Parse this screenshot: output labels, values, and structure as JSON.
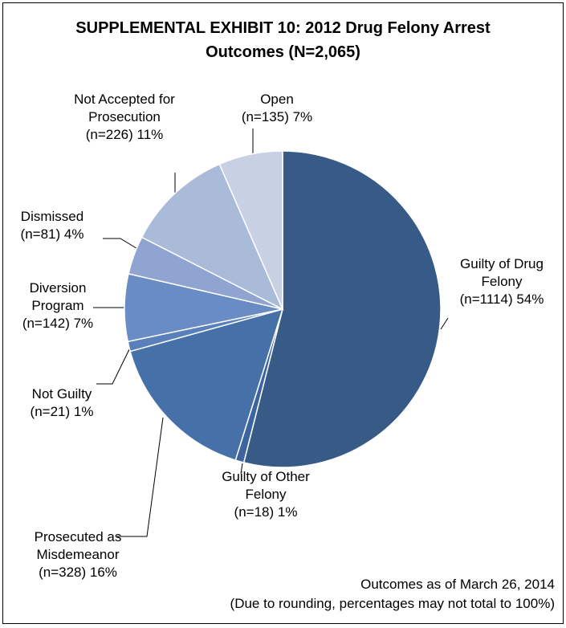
{
  "chart_data": {
    "type": "pie",
    "title": "SUPPLEMENTAL EXHIBIT 10: 2012 Drug Felony Arrest Outcomes (N=2,065)",
    "categories": [
      "Guilty of Drug Felony",
      "Guilty of Other Felony",
      "Prosecuted as Misdemeanor",
      "Not Guilty",
      "Diversion Program",
      "Dismissed",
      "Not Accepted for Prosecution",
      "Open"
    ],
    "values": [
      1114,
      18,
      328,
      21,
      142,
      81,
      226,
      135
    ],
    "value_labels": [
      "(n=1114) 54%",
      "(n=18) 1%",
      "(n=328) 16%",
      "(n=21) 1%",
      "(n=142) 7%",
      "(n=81) 4%",
      "(n=226) 11%",
      "(n=135) 7%"
    ],
    "colors": [
      "#375a87",
      "#3c64a0",
      "#4571a8",
      "#5a80bb",
      "#6a8cc4",
      "#8fa4d0",
      "#aabbd9",
      "#c8d0e4"
    ],
    "notes": [
      "Outcomes as of March 26, 2014",
      "(Due to rounding, percentages may not total to 100%)"
    ]
  }
}
